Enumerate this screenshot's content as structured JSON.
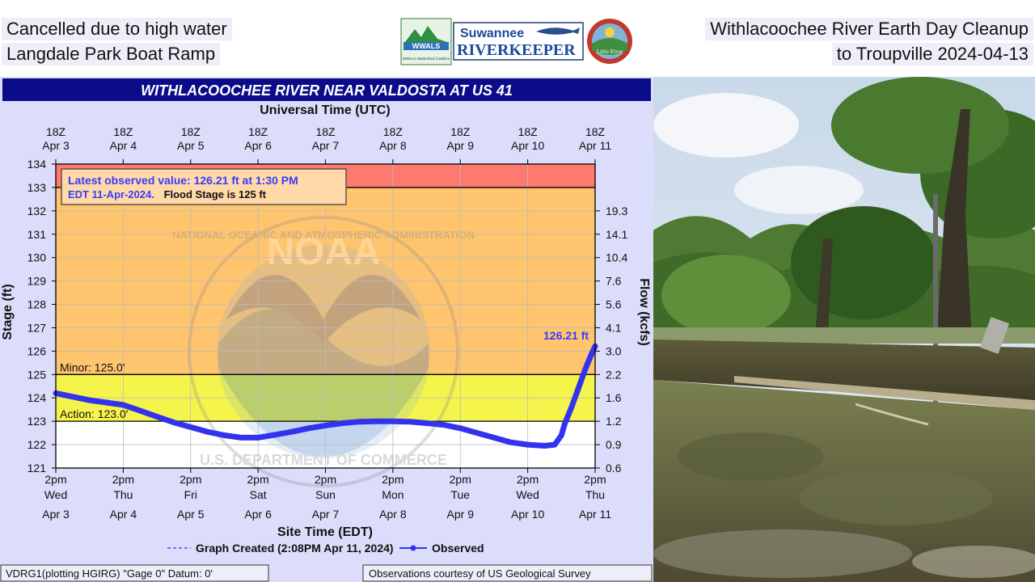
{
  "captions": {
    "left_line1": "Cancelled due to high water",
    "left_line2": "Langdale Park Boat Ramp",
    "right_line1": "Withlacoochee River Earth Day Cleanup",
    "right_line2": "to Troupville 2024-04-13"
  },
  "logos": {
    "wwals": "WWALS",
    "wwals_sub": "WWALS Watershed Coalition",
    "riverkeeper_top": "Suwannee",
    "riverkeeper_bottom": "RIVERKEEPER",
    "little_river": "Little River"
  },
  "chart_data": {
    "type": "line",
    "title": "WITHLACOOCHEE RIVER NEAR VALDOSTA AT US 41",
    "top_axis_title": "Universal Time (UTC)",
    "top_ticks": [
      {
        "hour": "18Z",
        "date": "Apr 3"
      },
      {
        "hour": "18Z",
        "date": "Apr 4"
      },
      {
        "hour": "18Z",
        "date": "Apr 5"
      },
      {
        "hour": "18Z",
        "date": "Apr 6"
      },
      {
        "hour": "18Z",
        "date": "Apr 7"
      },
      {
        "hour": "18Z",
        "date": "Apr 8"
      },
      {
        "hour": "18Z",
        "date": "Apr 9"
      },
      {
        "hour": "18Z",
        "date": "Apr 10"
      },
      {
        "hour": "18Z",
        "date": "Apr 11"
      }
    ],
    "bottom_ticks": [
      {
        "time": "2pm",
        "day": "Wed",
        "date": "Apr 3"
      },
      {
        "time": "2pm",
        "day": "Thu",
        "date": "Apr 4"
      },
      {
        "time": "2pm",
        "day": "Fri",
        "date": "Apr 5"
      },
      {
        "time": "2pm",
        "day": "Sat",
        "date": "Apr 6"
      },
      {
        "time": "2pm",
        "day": "Sun",
        "date": "Apr 7"
      },
      {
        "time": "2pm",
        "day": "Mon",
        "date": "Apr 8"
      },
      {
        "time": "2pm",
        "day": "Tue",
        "date": "Apr 9"
      },
      {
        "time": "2pm",
        "day": "Wed",
        "date": "Apr 10"
      },
      {
        "time": "2pm",
        "day": "Thu",
        "date": "Apr 11"
      }
    ],
    "xlabel": "Site Time (EDT)",
    "ylabel": "Stage (ft)",
    "y2label": "Flow (kcfs)",
    "ylim": [
      121,
      134
    ],
    "y_ticks": [
      121,
      122,
      123,
      124,
      125,
      126,
      127,
      128,
      129,
      130,
      131,
      132,
      133,
      134
    ],
    "flow_ticks": [
      {
        "stage": 121,
        "label": "0.6"
      },
      {
        "stage": 122,
        "label": "0.9"
      },
      {
        "stage": 123,
        "label": "1.2"
      },
      {
        "stage": 124,
        "label": "1.6"
      },
      {
        "stage": 125,
        "label": "2.2"
      },
      {
        "stage": 126,
        "label": "3.0"
      },
      {
        "stage": 127,
        "label": "4.1"
      },
      {
        "stage": 128,
        "label": "5.6"
      },
      {
        "stage": 129,
        "label": "7.6"
      },
      {
        "stage": 130,
        "label": "10.4"
      },
      {
        "stage": 131,
        "label": "14.1"
      },
      {
        "stage": 132,
        "label": "19.3"
      }
    ],
    "bands": [
      {
        "from": 133,
        "to": 134,
        "color": "#ff7a6e"
      },
      {
        "from": 125,
        "to": 133,
        "color": "#ffc46e"
      },
      {
        "from": 123,
        "to": 125,
        "color": "#f4f44c"
      }
    ],
    "thresholds": [
      {
        "stage": 125,
        "label": "Minor: 125.0'"
      },
      {
        "stage": 123,
        "label": "Action: 123.0'"
      },
      {
        "stage": 133,
        "label": ""
      }
    ],
    "series": [
      {
        "name": "Observed",
        "color": "#3333ee",
        "x": [
          0,
          0.25,
          0.5,
          0.75,
          1.0,
          1.25,
          1.5,
          1.75,
          2.0,
          2.25,
          2.5,
          2.75,
          3.0,
          3.25,
          3.5,
          3.75,
          4.0,
          4.25,
          4.5,
          4.75,
          5.0,
          5.25,
          5.5,
          5.75,
          6.0,
          6.25,
          6.5,
          6.75,
          7.0,
          7.25,
          7.4,
          7.5,
          7.55,
          7.65,
          7.75,
          7.85,
          7.95,
          8.0
        ],
        "values": [
          124.2,
          124.05,
          123.9,
          123.8,
          123.7,
          123.45,
          123.2,
          122.95,
          122.75,
          122.55,
          122.4,
          122.3,
          122.3,
          122.42,
          122.55,
          122.7,
          122.82,
          122.92,
          122.98,
          123.0,
          123.0,
          122.98,
          122.92,
          122.85,
          122.7,
          122.5,
          122.3,
          122.1,
          122.0,
          121.95,
          122.0,
          122.4,
          122.9,
          123.6,
          124.4,
          125.2,
          125.9,
          126.21
        ]
      }
    ],
    "annotation_line1": "Latest observed value: 126.21 ft at 1:30 PM",
    "annotation_line2_blue": "EDT 11-Apr-2024.",
    "annotation_line2_black": "Flood Stage is 125 ft",
    "last_value_label": "126.21 ft",
    "legend_graph_created": "Graph Created (2:08PM Apr 11, 2024)",
    "legend_observed": "Observed",
    "footer_left": "VDRG1(plotting HGIRG) \"Gage 0\" Datum: 0'",
    "footer_right": "Observations courtesy of US Geological Survey",
    "watermark_text": "NOAA",
    "watermark_ring": "NATIONAL OCEANIC AND ATMOSPHERIC ADMINISTRATION",
    "watermark_ring_bottom": "U.S. DEPARTMENT OF COMMERCE"
  }
}
